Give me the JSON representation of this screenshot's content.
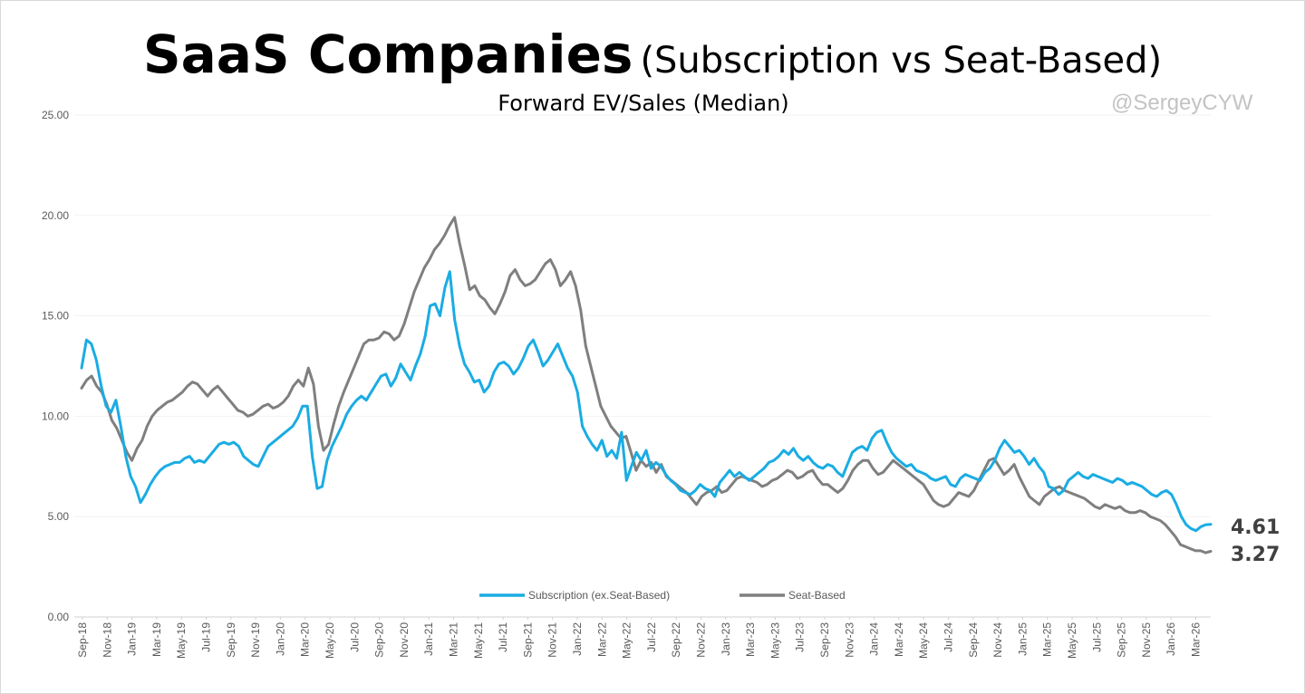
{
  "title": {
    "main": "SaaS Companies",
    "sub": "(Subscription vs Seat-Based)"
  },
  "subtitle": "Forward EV/Sales (Median)",
  "watermark": "@SergeyCYW",
  "chart_data": {
    "type": "line",
    "title": "SaaS Companies (Subscription vs Seat-Based)",
    "subtitle": "Forward EV/Sales (Median)",
    "xlabel": "",
    "ylabel": "",
    "ylim": [
      0,
      25
    ],
    "yticks": [
      "0.00",
      "5.00",
      "10.00",
      "15.00",
      "20.00",
      "25.00"
    ],
    "x_tick_labels": [
      "Sep-18",
      "Nov-18",
      "Jan-19",
      "Mar-19",
      "May-19",
      "Jul-19",
      "Sep-19",
      "Nov-19",
      "Jan-20",
      "Mar-20",
      "May-20",
      "Jul-20",
      "Sep-20",
      "Nov-20",
      "Jan-21",
      "Mar-21",
      "May-21",
      "Jul-21",
      "Sep-21",
      "Nov-21",
      "Jan-22",
      "Mar-22",
      "May-22",
      "Jul-22",
      "Sep-22",
      "Nov-22",
      "Jan-23",
      "Mar-23",
      "May-23",
      "Jul-23",
      "Sep-23",
      "Nov-23",
      "Jan-24",
      "Mar-24",
      "May-24",
      "Jul-24",
      "Sep-24",
      "Nov-24",
      "Jan-25",
      "Mar-25",
      "May-25",
      "Jul-25",
      "Sep-25",
      "Nov-25",
      "Jan-26",
      "Mar-26"
    ],
    "x_start": "Sep-18",
    "x_end": "Apr-26",
    "grid": "horizontal",
    "legend_position": "bottom",
    "series": [
      {
        "name": "Subscription (ex.Seat-Based)",
        "color": "#1aace3",
        "end_label": "4.61",
        "values": [
          12.4,
          13.8,
          13.6,
          12.8,
          11.5,
          10.5,
          10.2,
          10.8,
          9.5,
          8.0,
          7.0,
          6.5,
          5.7,
          6.1,
          6.6,
          7.0,
          7.3,
          7.5,
          7.6,
          7.7,
          7.7,
          7.9,
          8.0,
          7.7,
          7.8,
          7.7,
          8.0,
          8.3,
          8.6,
          8.7,
          8.6,
          8.7,
          8.5,
          8.0,
          7.8,
          7.6,
          7.5,
          8.0,
          8.5,
          8.7,
          8.9,
          9.1,
          9.3,
          9.5,
          9.9,
          10.5,
          10.5,
          8.0,
          6.4,
          6.5,
          7.8,
          8.5,
          9.0,
          9.5,
          10.1,
          10.5,
          10.8,
          11.0,
          10.8,
          11.2,
          11.6,
          12.0,
          12.1,
          11.5,
          11.9,
          12.6,
          12.2,
          11.8,
          12.5,
          13.1,
          14.0,
          15.5,
          15.6,
          15.0,
          16.4,
          17.2,
          14.8,
          13.5,
          12.6,
          12.2,
          11.7,
          11.8,
          11.2,
          11.5,
          12.2,
          12.6,
          12.7,
          12.5,
          12.1,
          12.4,
          12.9,
          13.5,
          13.8,
          13.2,
          12.5,
          12.8,
          13.2,
          13.6,
          13.0,
          12.4,
          12.0,
          11.2,
          9.5,
          9.0,
          8.6,
          8.3,
          8.8,
          8.0,
          8.3,
          7.9,
          9.2,
          6.8,
          7.5,
          8.2,
          7.8,
          8.3,
          7.4,
          7.7,
          7.5,
          7.1,
          6.8,
          6.6,
          6.3,
          6.2,
          6.1,
          6.3,
          6.6,
          6.4,
          6.3,
          6.0,
          6.7,
          7.0,
          7.3,
          7.0,
          7.2,
          7.0,
          6.8,
          7.0,
          7.2,
          7.4,
          7.7,
          7.8,
          8.0,
          8.3,
          8.1,
          8.4,
          8.0,
          7.8,
          8.0,
          7.7,
          7.5,
          7.4,
          7.6,
          7.5,
          7.2,
          7.0,
          7.6,
          8.2,
          8.4,
          8.5,
          8.3,
          8.9,
          9.2,
          9.3,
          8.7,
          8.2,
          7.9,
          7.7,
          7.5,
          7.6,
          7.3,
          7.2,
          7.1,
          6.9,
          6.8,
          6.9,
          7.0,
          6.6,
          6.5,
          6.9,
          7.1,
          7.0,
          6.9,
          6.8,
          7.2,
          7.4,
          7.8,
          8.4,
          8.8,
          8.5,
          8.2,
          8.3,
          8.0,
          7.6,
          7.9,
          7.5,
          7.2,
          6.5,
          6.4,
          6.1,
          6.3,
          6.8,
          7.0,
          7.2,
          7.0,
          6.9,
          7.1,
          7.0,
          6.9,
          6.8,
          6.7,
          6.9,
          6.8,
          6.6,
          6.7,
          6.6,
          6.5,
          6.3,
          6.1,
          6.0,
          6.2,
          6.3,
          6.1,
          5.6,
          5.0,
          4.6,
          4.4,
          4.3,
          4.5,
          4.6,
          4.61
        ]
      },
      {
        "name": "Seat-Based",
        "color": "#7f7f7f",
        "end_label": "3.27",
        "values": [
          11.4,
          11.8,
          12.0,
          11.5,
          11.2,
          10.6,
          9.8,
          9.4,
          8.8,
          8.2,
          7.8,
          8.4,
          8.8,
          9.5,
          10.0,
          10.3,
          10.5,
          10.7,
          10.8,
          11.0,
          11.2,
          11.5,
          11.7,
          11.6,
          11.3,
          11.0,
          11.3,
          11.5,
          11.2,
          10.9,
          10.6,
          10.3,
          10.2,
          10.0,
          10.1,
          10.3,
          10.5,
          10.6,
          10.4,
          10.5,
          10.7,
          11.0,
          11.5,
          11.8,
          11.5,
          12.4,
          11.6,
          9.5,
          8.3,
          8.6,
          9.6,
          10.5,
          11.2,
          11.8,
          12.4,
          13.0,
          13.6,
          13.8,
          13.8,
          13.9,
          14.2,
          14.1,
          13.8,
          14.0,
          14.6,
          15.4,
          16.2,
          16.8,
          17.4,
          17.8,
          18.3,
          18.6,
          19.0,
          19.5,
          19.9,
          18.6,
          17.5,
          16.3,
          16.5,
          16.0,
          15.8,
          15.4,
          15.1,
          15.6,
          16.2,
          17.0,
          17.3,
          16.8,
          16.5,
          16.6,
          16.8,
          17.2,
          17.6,
          17.8,
          17.3,
          16.5,
          16.8,
          17.2,
          16.5,
          15.3,
          13.5,
          12.5,
          11.5,
          10.5,
          10.0,
          9.5,
          9.2,
          8.9,
          9.0,
          8.2,
          7.3,
          7.8,
          7.5,
          7.7,
          7.2,
          7.6,
          7.0,
          6.8,
          6.6,
          6.4,
          6.2,
          5.9,
          5.6,
          6.0,
          6.2,
          6.3,
          6.5,
          6.2,
          6.3,
          6.6,
          6.9,
          7.0,
          6.9,
          6.8,
          6.7,
          6.5,
          6.6,
          6.8,
          6.9,
          7.1,
          7.3,
          7.2,
          6.9,
          7.0,
          7.2,
          7.3,
          6.9,
          6.6,
          6.6,
          6.4,
          6.2,
          6.4,
          6.8,
          7.3,
          7.6,
          7.8,
          7.8,
          7.4,
          7.1,
          7.2,
          7.5,
          7.8,
          7.6,
          7.4,
          7.2,
          7.0,
          6.8,
          6.6,
          6.2,
          5.8,
          5.6,
          5.5,
          5.6,
          5.9,
          6.2,
          6.1,
          6.0,
          6.3,
          6.8,
          7.3,
          7.8,
          7.9,
          7.5,
          7.1,
          7.3,
          7.6,
          7.0,
          6.5,
          6.0,
          5.8,
          5.6,
          6.0,
          6.2,
          6.4,
          6.5,
          6.3,
          6.2,
          6.1,
          6.0,
          5.9,
          5.7,
          5.5,
          5.4,
          5.6,
          5.5,
          5.4,
          5.5,
          5.3,
          5.2,
          5.2,
          5.3,
          5.2,
          5.0,
          4.9,
          4.8,
          4.6,
          4.3,
          4.0,
          3.6,
          3.5,
          3.4,
          3.3,
          3.3,
          3.2,
          3.27
        ]
      }
    ]
  }
}
